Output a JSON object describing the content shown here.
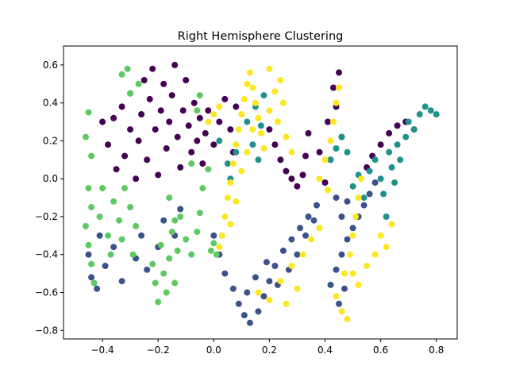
{
  "chart_data": {
    "type": "scatter",
    "title": "Right Hemisphere Clustering",
    "xlabel": "",
    "ylabel": "",
    "xlim": [
      -0.54,
      0.875
    ],
    "ylim": [
      -0.845,
      0.7
    ],
    "x_ticks": [
      -0.4,
      -0.2,
      0.0,
      0.2,
      0.4,
      0.6,
      0.8
    ],
    "x_tick_labels": [
      "−0.4",
      "−0.2",
      "0.0",
      "0.2",
      "0.4",
      "0.6",
      "0.8"
    ],
    "y_ticks": [
      -0.8,
      -0.6,
      -0.4,
      -0.2,
      0.0,
      0.2,
      0.4,
      0.6
    ],
    "y_tick_labels": [
      "−0.8",
      "−0.6",
      "−0.4",
      "−0.2",
      "0.0",
      "0.2",
      "0.4",
      "0.6"
    ],
    "grid": false,
    "legend": "none",
    "series": [
      {
        "color": "#440154",
        "points": [
          [
            -0.4,
            0.3
          ],
          [
            -0.38,
            0.18
          ],
          [
            -0.36,
            0.32
          ],
          [
            -0.35,
            0.05
          ],
          [
            -0.33,
            0.38
          ],
          [
            -0.32,
            0.12
          ],
          [
            -0.3,
            0.26
          ],
          [
            -0.3,
            0.45
          ],
          [
            -0.28,
            0.0
          ],
          [
            -0.27,
            0.2
          ],
          [
            -0.26,
            0.34
          ],
          [
            -0.25,
            0.52
          ],
          [
            -0.24,
            0.1
          ],
          [
            -0.23,
            0.42
          ],
          [
            -0.22,
            0.58
          ],
          [
            -0.21,
            0.26
          ],
          [
            -0.2,
            0.02
          ],
          [
            -0.19,
            0.36
          ],
          [
            -0.18,
            0.5
          ],
          [
            -0.17,
            0.16
          ],
          [
            -0.16,
            0.3
          ],
          [
            -0.15,
            0.44
          ],
          [
            -0.14,
            0.6
          ],
          [
            -0.13,
            0.22
          ],
          [
            -0.12,
            0.06
          ],
          [
            -0.11,
            0.36
          ],
          [
            -0.1,
            0.52
          ],
          [
            -0.09,
            0.28
          ],
          [
            -0.08,
            0.14
          ],
          [
            -0.07,
            0.4
          ],
          [
            -0.06,
            0.2
          ],
          [
            -0.05,
            0.32
          ],
          [
            -0.04,
            0.08
          ],
          [
            -0.03,
            0.24
          ],
          [
            -0.02,
            0.36
          ],
          [
            0.0,
            0.18
          ],
          [
            0.02,
            0.3
          ],
          [
            0.04,
            0.42
          ],
          [
            0.06,
            0.26
          ],
          [
            0.07,
            0.14
          ],
          [
            0.08,
            0.38
          ],
          [
            0.2,
            0.26
          ],
          [
            0.22,
            0.18
          ],
          [
            0.24,
            0.1
          ],
          [
            0.26,
            0.04
          ],
          [
            0.28,
            0.0
          ],
          [
            0.3,
            -0.04
          ],
          [
            0.32,
            0.02
          ],
          [
            0.33,
            0.12
          ],
          [
            0.34,
            0.24
          ],
          [
            0.38,
            0.14
          ],
          [
            0.41,
            0.3
          ],
          [
            0.43,
            0.48
          ],
          [
            0.45,
            0.56
          ],
          [
            0.44,
            0.38
          ],
          [
            0.46,
            0.22
          ],
          [
            0.42,
            0.1
          ],
          [
            0.4,
            -0.02
          ],
          [
            0.55,
            0.06
          ],
          [
            0.57,
            0.12
          ],
          [
            0.6,
            0.18
          ],
          [
            0.63,
            0.24
          ],
          [
            0.66,
            0.28
          ],
          [
            0.69,
            0.3
          ],
          [
            0.72,
            0.26
          ]
        ]
      },
      {
        "color": "#3b528b",
        "points": [
          [
            -0.45,
            -0.4
          ],
          [
            -0.44,
            -0.52
          ],
          [
            -0.42,
            -0.58
          ],
          [
            -0.41,
            -0.3
          ],
          [
            -0.39,
            -0.46
          ],
          [
            -0.36,
            -0.36
          ],
          [
            -0.33,
            -0.54
          ],
          [
            -0.28,
            -0.42
          ],
          [
            -0.26,
            -0.3
          ],
          [
            -0.24,
            -0.48
          ],
          [
            -0.2,
            -0.36
          ],
          [
            -0.18,
            -0.22
          ],
          [
            -0.14,
            -0.3
          ],
          [
            -0.12,
            -0.16
          ],
          [
            0.0,
            -0.3
          ],
          [
            0.02,
            -0.4
          ],
          [
            0.04,
            -0.5
          ],
          [
            0.07,
            -0.58
          ],
          [
            0.09,
            -0.66
          ],
          [
            0.11,
            -0.72
          ],
          [
            0.13,
            -0.76
          ],
          [
            0.16,
            -0.7
          ],
          [
            0.18,
            -0.62
          ],
          [
            0.2,
            -0.54
          ],
          [
            0.22,
            -0.46
          ],
          [
            0.25,
            -0.38
          ],
          [
            0.28,
            -0.32
          ],
          [
            0.31,
            -0.26
          ],
          [
            0.34,
            -0.2
          ],
          [
            0.37,
            -0.14
          ],
          [
            0.12,
            -0.6
          ],
          [
            0.15,
            -0.52
          ],
          [
            0.19,
            -0.44
          ],
          [
            0.23,
            -0.56
          ],
          [
            0.27,
            -0.48
          ],
          [
            0.3,
            -0.4
          ],
          [
            0.33,
            -0.3
          ],
          [
            0.36,
            -0.22
          ],
          [
            0.42,
            -0.56
          ],
          [
            0.44,
            -0.48
          ],
          [
            0.46,
            -0.4
          ],
          [
            0.48,
            -0.32
          ],
          [
            0.5,
            -0.26
          ],
          [
            0.52,
            -0.2
          ],
          [
            0.54,
            -0.14
          ],
          [
            0.56,
            -0.08
          ],
          [
            0.45,
            -0.66
          ],
          [
            0.47,
            -0.58
          ],
          [
            0.58,
            -0.02
          ],
          [
            0.44,
            -0.1
          ],
          [
            0.46,
            -0.2
          ],
          [
            0.48,
            -0.12
          ]
        ]
      },
      {
        "color": "#21918c",
        "points": [
          [
            0.02,
            0.2
          ],
          [
            0.05,
            0.08
          ],
          [
            0.06,
            0.0
          ],
          [
            0.08,
            0.14
          ],
          [
            0.12,
            0.3
          ],
          [
            0.14,
            0.18
          ],
          [
            0.15,
            0.38
          ],
          [
            0.17,
            0.28
          ],
          [
            0.18,
            0.44
          ],
          [
            0.16,
            0.1
          ],
          [
            0.42,
            0.1
          ],
          [
            0.44,
            0.16
          ],
          [
            0.46,
            0.22
          ],
          [
            0.48,
            0.14
          ],
          [
            0.5,
            -0.04
          ],
          [
            0.52,
            0.02
          ],
          [
            0.54,
            -0.1
          ],
          [
            0.56,
            0.04
          ],
          [
            0.58,
            0.1
          ],
          [
            0.6,
            0.0
          ],
          [
            0.61,
            -0.08
          ],
          [
            0.63,
            0.14
          ],
          [
            0.64,
            0.06
          ],
          [
            0.66,
            0.18
          ],
          [
            0.67,
            0.1
          ],
          [
            0.69,
            0.22
          ],
          [
            0.7,
            0.3
          ],
          [
            0.72,
            0.26
          ],
          [
            0.74,
            0.34
          ],
          [
            0.76,
            0.38
          ],
          [
            0.78,
            0.36
          ],
          [
            0.8,
            0.34
          ],
          [
            0.62,
            -0.2
          ],
          [
            0.65,
            -0.02
          ]
        ]
      },
      {
        "color": "#5ec962",
        "points": [
          [
            -0.45,
            0.35
          ],
          [
            -0.46,
            0.22
          ],
          [
            -0.44,
            0.12
          ],
          [
            -0.45,
            -0.05
          ],
          [
            -0.44,
            -0.15
          ],
          [
            -0.46,
            -0.25
          ],
          [
            -0.45,
            -0.35
          ],
          [
            -0.44,
            -0.45
          ],
          [
            -0.43,
            -0.55
          ],
          [
            -0.41,
            -0.2
          ],
          [
            -0.4,
            -0.05
          ],
          [
            -0.38,
            -0.3
          ],
          [
            -0.37,
            -0.4
          ],
          [
            -0.36,
            -0.12
          ],
          [
            -0.34,
            -0.22
          ],
          [
            -0.33,
            -0.32
          ],
          [
            -0.32,
            -0.05
          ],
          [
            -0.3,
            -0.15
          ],
          [
            -0.29,
            -0.4
          ],
          [
            -0.28,
            -0.25
          ],
          [
            -0.3,
            0.45
          ],
          [
            -0.33,
            0.55
          ],
          [
            -0.31,
            0.58
          ],
          [
            -0.27,
            0.5
          ],
          [
            -0.22,
            -0.45
          ],
          [
            -0.21,
            -0.55
          ],
          [
            -0.2,
            -0.65
          ],
          [
            -0.19,
            -0.35
          ],
          [
            -0.18,
            -0.5
          ],
          [
            -0.17,
            -0.6
          ],
          [
            -0.16,
            -0.42
          ],
          [
            -0.15,
            -0.28
          ],
          [
            -0.14,
            -0.55
          ],
          [
            -0.13,
            -0.38
          ],
          [
            -0.12,
            -0.2
          ],
          [
            -0.1,
            -0.32
          ],
          [
            -0.16,
            -0.1
          ],
          [
            -0.14,
            -0.22
          ],
          [
            -0.05,
            -0.18
          ],
          [
            -0.06,
            -0.28
          ],
          [
            -0.08,
            -0.4
          ],
          [
            -0.04,
            -0.05
          ],
          [
            -0.02,
            0.05
          ],
          [
            -0.08,
            0.08
          ],
          [
            -0.06,
            0.36
          ],
          [
            -0.05,
            0.44
          ],
          [
            0.0,
            -0.34
          ],
          [
            0.01,
            -0.4
          ],
          [
            -0.01,
            -0.38
          ]
        ]
      },
      {
        "color": "#fde725",
        "points": [
          [
            -0.02,
            0.3
          ],
          [
            0.0,
            0.34
          ],
          [
            0.02,
            0.38
          ],
          [
            0.02,
            -0.36
          ],
          [
            0.03,
            -0.3
          ],
          [
            0.04,
            -0.2
          ],
          [
            0.05,
            -0.1
          ],
          [
            0.06,
            -0.02
          ],
          [
            0.07,
            0.08
          ],
          [
            0.08,
            0.18
          ],
          [
            0.09,
            0.26
          ],
          [
            0.1,
            0.34
          ],
          [
            0.11,
            0.42
          ],
          [
            0.12,
            0.5
          ],
          [
            0.13,
            0.56
          ],
          [
            0.14,
            0.48
          ],
          [
            0.15,
            0.4
          ],
          [
            0.16,
            0.32
          ],
          [
            0.17,
            0.24
          ],
          [
            0.18,
            0.16
          ],
          [
            0.1,
            0.04
          ],
          [
            0.12,
            0.14
          ],
          [
            0.14,
            0.26
          ],
          [
            0.08,
            -0.12
          ],
          [
            0.06,
            -0.24
          ],
          [
            0.2,
            0.36
          ],
          [
            0.22,
            0.46
          ],
          [
            0.24,
            0.52
          ],
          [
            0.23,
            0.3
          ],
          [
            0.26,
            0.22
          ],
          [
            0.28,
            0.14
          ],
          [
            0.2,
            0.58
          ],
          [
            0.25,
            0.4
          ],
          [
            0.16,
            -0.6
          ],
          [
            0.2,
            -0.64
          ],
          [
            0.24,
            -0.54
          ],
          [
            0.28,
            -0.46
          ],
          [
            0.32,
            -0.4
          ],
          [
            0.35,
            -0.32
          ],
          [
            0.38,
            -0.26
          ],
          [
            0.3,
            -0.58
          ],
          [
            0.26,
            -0.66
          ],
          [
            0.38,
            0.0
          ],
          [
            0.4,
            0.1
          ],
          [
            0.42,
            0.2
          ],
          [
            0.43,
            0.3
          ],
          [
            0.44,
            0.4
          ],
          [
            0.45,
            0.48
          ],
          [
            0.41,
            -0.06
          ],
          [
            0.44,
            -0.62
          ],
          [
            0.46,
            -0.7
          ],
          [
            0.48,
            -0.74
          ],
          [
            0.47,
            -0.5
          ],
          [
            0.49,
            -0.4
          ],
          [
            0.5,
            -0.3
          ],
          [
            0.51,
            -0.2
          ],
          [
            0.52,
            -0.1
          ],
          [
            0.53,
            0.0
          ],
          [
            0.5,
            -0.5
          ],
          [
            0.52,
            -0.56
          ],
          [
            0.58,
            -0.4
          ],
          [
            0.6,
            -0.3
          ],
          [
            0.62,
            -0.36
          ],
          [
            0.64,
            -0.24
          ],
          [
            0.55,
            -0.46
          ]
        ]
      }
    ]
  }
}
